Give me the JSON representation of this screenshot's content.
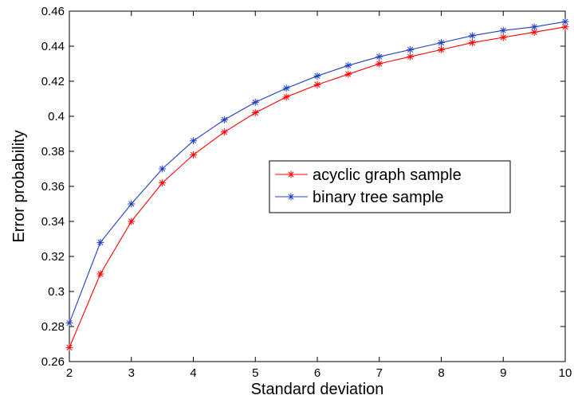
{
  "chart_data": {
    "type": "line",
    "title": "",
    "xlabel": "Standard deviation",
    "ylabel": "Error probability",
    "xlim": [
      2,
      10
    ],
    "ylim": [
      0.26,
      0.46
    ],
    "grid": false,
    "legend_position": "center-right",
    "x_ticks": [
      "2",
      "3",
      "4",
      "5",
      "6",
      "7",
      "8",
      "9",
      "10"
    ],
    "y_ticks": [
      "0.26",
      "0.28",
      "0.3",
      "0.32",
      "0.34",
      "0.36",
      "0.38",
      "0.4",
      "0.42",
      "0.44",
      "0.46"
    ],
    "x": [
      2,
      2.5,
      3,
      3.5,
      4,
      4.5,
      5,
      5.5,
      6,
      6.5,
      7,
      7.5,
      8,
      8.5,
      9,
      9.5,
      10
    ],
    "series": [
      {
        "name": "acyclic graph sample",
        "color": "#ff0000",
        "marker": "asterisk",
        "values": [
          0.268,
          0.31,
          0.34,
          0.362,
          0.378,
          0.391,
          0.402,
          0.411,
          0.418,
          0.424,
          0.43,
          0.434,
          0.438,
          0.442,
          0.445,
          0.448,
          0.451
        ]
      },
      {
        "name": "binary tree sample",
        "color": "#1f3fbf",
        "marker": "asterisk",
        "values": [
          0.282,
          0.328,
          0.35,
          0.37,
          0.386,
          0.398,
          0.408,
          0.416,
          0.423,
          0.429,
          0.434,
          0.438,
          0.442,
          0.446,
          0.449,
          0.451,
          0.454
        ]
      }
    ]
  }
}
